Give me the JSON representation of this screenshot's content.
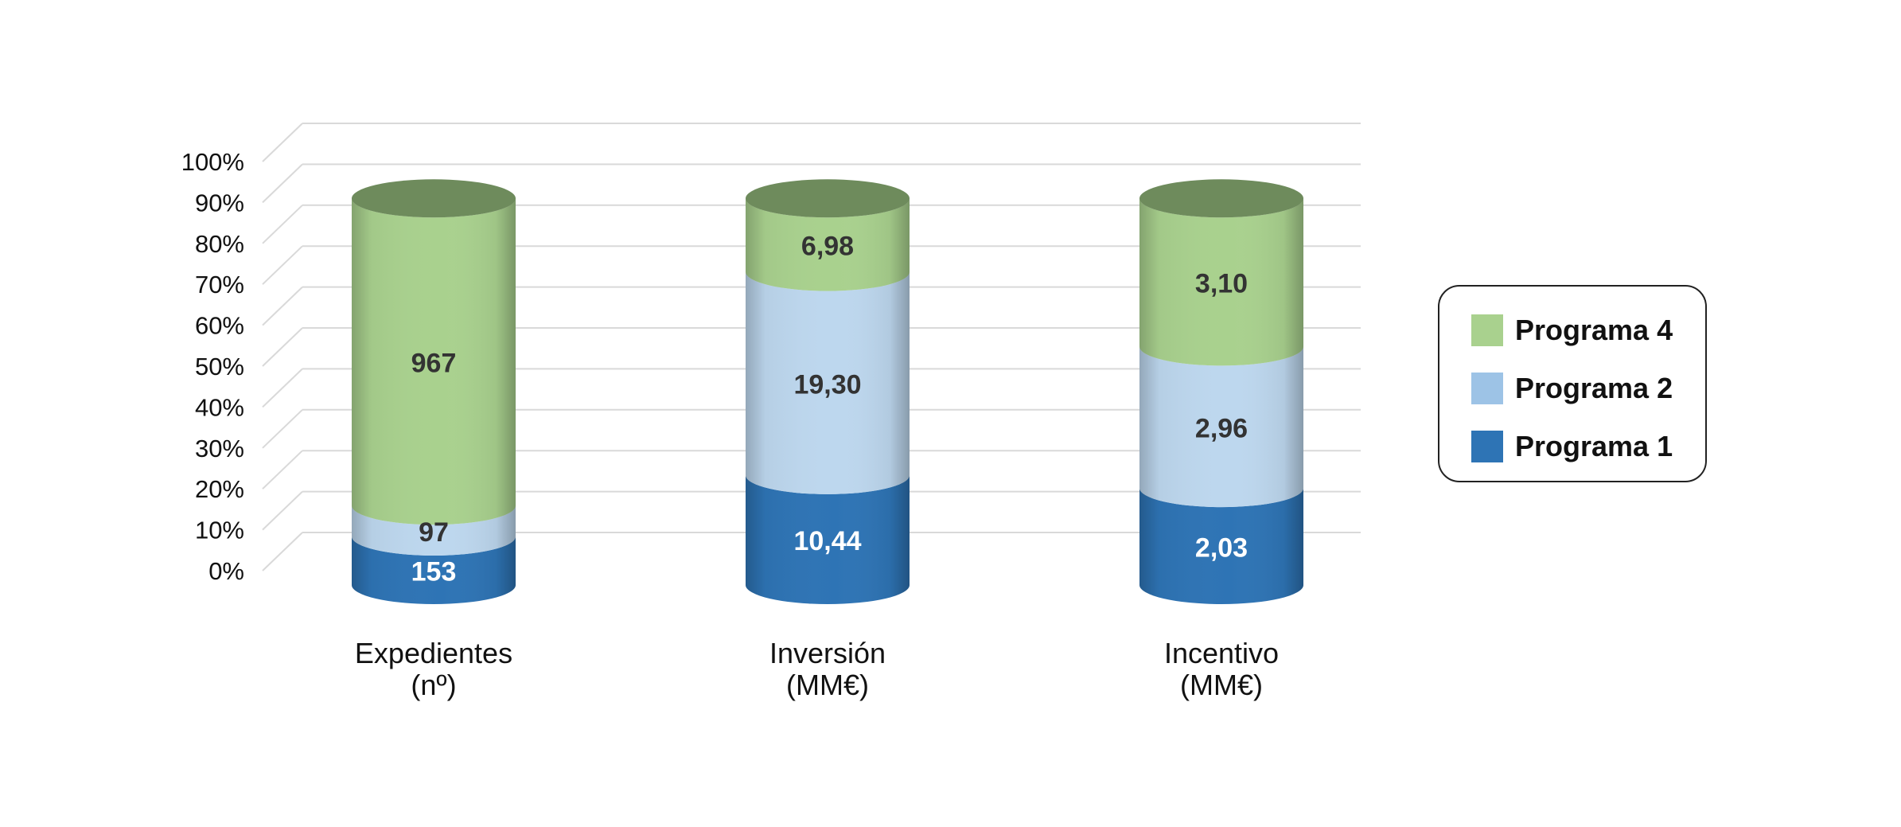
{
  "chart_data": {
    "type": "bar",
    "stacked": "percent",
    "style": "3d-cylinder",
    "title": "",
    "xlabel": "",
    "ylabel": "",
    "ylim": [
      0,
      100
    ],
    "y_ticks": [
      "0%",
      "10%",
      "20%",
      "30%",
      "40%",
      "50%",
      "60%",
      "70%",
      "80%",
      "90%",
      "100%"
    ],
    "grid": true,
    "legend_position": "right",
    "categories": [
      {
        "line1": "Expedientes",
        "line2": "(nº)"
      },
      {
        "line1": "Inversión",
        "line2": "(MM€)"
      },
      {
        "line1": "Incentivo",
        "line2": "(MM€)"
      }
    ],
    "series": [
      {
        "name": "Programa 1",
        "values": [
          153,
          10.44,
          2.03
        ],
        "labels": [
          "153",
          "10,44",
          "2,03"
        ],
        "color": "#2e74b5",
        "label_color": "#ffffff"
      },
      {
        "name": "Programa 2",
        "values": [
          97,
          19.3,
          2.96
        ],
        "labels": [
          "97",
          "19,30",
          "2,96"
        ],
        "color": "#bdd7ee",
        "label_color": "#333333"
      },
      {
        "name": "Programa 4",
        "values": [
          967,
          6.98,
          3.1
        ],
        "labels": [
          "967",
          "6,98",
          "3,10"
        ],
        "color": "#a9d18e",
        "label_color": "#333333"
      }
    ],
    "legend_order": [
      "Programa 4",
      "Programa 2",
      "Programa 1"
    ],
    "top_cap_color": "#6e8b5c"
  }
}
